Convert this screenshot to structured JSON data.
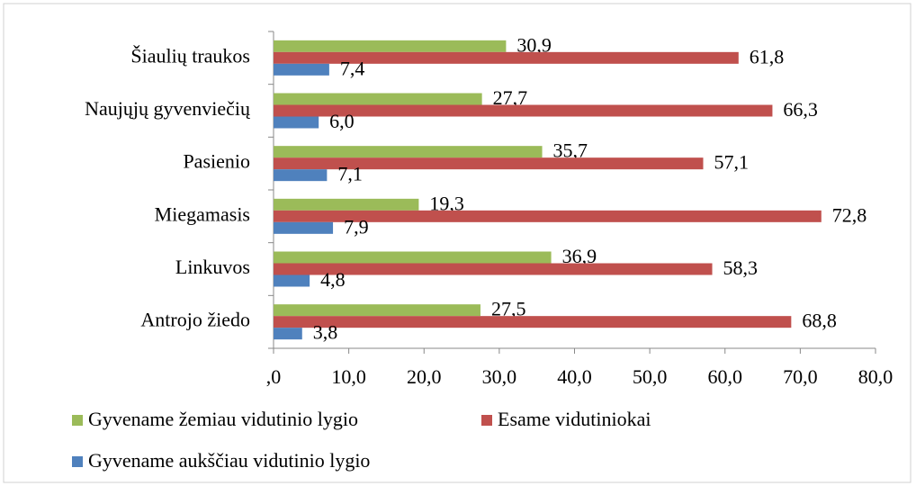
{
  "chart_data": {
    "type": "hbar",
    "categories": [
      "Šiaulių traukos",
      "Naujųjų gyvenviečių",
      "Pasienio",
      "Miegamasis",
      "Linkuvos",
      "Antrojo žiedo"
    ],
    "series": [
      {
        "name": "Gyvename žemiau vidutinio lygio",
        "color": "#9bbb59",
        "values": [
          30.9,
          27.7,
          35.7,
          19.3,
          36.9,
          27.5
        ],
        "value_labels": [
          "30,9",
          "27,7",
          "35,7",
          "19,3",
          "36,9",
          "27,5"
        ]
      },
      {
        "name": "Esame vidutiniokai",
        "color": "#c0504d",
        "values": [
          61.8,
          66.3,
          57.1,
          72.8,
          58.3,
          68.8
        ],
        "value_labels": [
          "61,8",
          "66,3",
          "57,1",
          "72,8",
          "58,3",
          "68,8"
        ]
      },
      {
        "name": "Gyvename aukščiau vidutinio lygio",
        "color": "#4f81bd",
        "values": [
          7.4,
          6.0,
          7.1,
          7.9,
          4.8,
          3.8
        ],
        "value_labels": [
          "7,4",
          "6,0",
          "7,1",
          "7,9",
          "4,8",
          "3,8"
        ]
      }
    ],
    "xlim": [
      0,
      80
    ],
    "xticks": [
      {
        "value": 0,
        "label": ",0"
      },
      {
        "value": 10,
        "label": "10,0"
      },
      {
        "value": 20,
        "label": "20,0"
      },
      {
        "value": 30,
        "label": "30,0"
      },
      {
        "value": 40,
        "label": "40,0"
      },
      {
        "value": 50,
        "label": "50,0"
      },
      {
        "value": 60,
        "label": "60,0"
      },
      {
        "value": 70,
        "label": "70,0"
      },
      {
        "value": 80,
        "label": "80,0"
      }
    ],
    "legend": "bottom"
  }
}
